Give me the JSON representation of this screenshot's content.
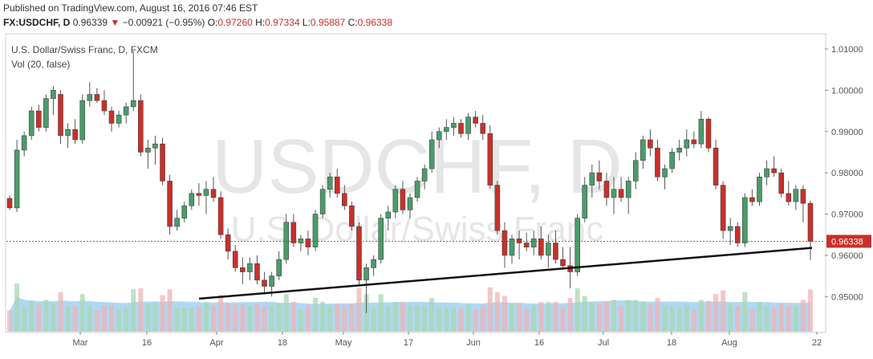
{
  "header": {
    "published": "Published on TradingView.com, August 16, 2016 07:46 EST",
    "symbol": "FX:USDCHF, D",
    "last": "0.96339",
    "change": "−0.00921 (−0.95%)",
    "open_label": "O:",
    "open": "0.97260",
    "high_label": "H:",
    "high": "0.97334",
    "low_label": "L:",
    "low": "0.95887",
    "close_label": "C:",
    "close": "0.96338"
  },
  "legend": {
    "title": "U.S. Dollar/Swiss Franc, D, FXCM",
    "volume": "Vol (20, false)"
  },
  "watermark": {
    "main": "USDCHF, D",
    "sub": "U.S. Dollar/Swiss Franc"
  },
  "colors": {
    "up": "#4a9c6a",
    "down": "#c8302b",
    "vol_up": "#a8d8b0",
    "vol_down": "#f0b4b4",
    "vol_ma": "#8ec8f0",
    "trend": "#111111",
    "last_line": "#c8302b"
  },
  "chart_data": {
    "type": "candlestick",
    "y_axis": {
      "ticks": [
        "0.95000",
        "0.96000",
        "0.97000",
        "0.98000",
        "0.99000",
        "1.00000",
        "1.01000"
      ],
      "range": [
        0.9415,
        1.0135
      ],
      "side": "right"
    },
    "x_axis": {
      "ticks": [
        "Mar",
        "16",
        "Apr",
        "18",
        "May",
        "17",
        "Jun",
        "16",
        "Jul",
        "18",
        "Aug",
        "22"
      ]
    },
    "last_price_label": "0.96338",
    "grid": false,
    "trendline": {
      "from": [
        "Mar 24",
        0.9495
      ],
      "to": [
        "Aug 16",
        0.9618
      ]
    },
    "candles": [
      [
        0.9738,
        0.9745,
        0.971,
        0.9715
      ],
      [
        0.9715,
        0.988,
        0.9705,
        0.9855
      ],
      [
        0.9855,
        0.99,
        0.984,
        0.989
      ],
      [
        0.989,
        0.996,
        0.988,
        0.995
      ],
      [
        0.995,
        0.9965,
        0.99,
        0.991
      ],
      [
        0.991,
        0.999,
        0.99,
        0.998
      ],
      [
        0.998,
        1.001,
        0.994,
        1.0
      ],
      [
        0.999,
        1.0,
        0.987,
        0.989
      ],
      [
        0.989,
        0.992,
        0.986,
        0.9905
      ],
      [
        0.9905,
        0.993,
        0.987,
        0.988
      ],
      [
        0.988,
        0.999,
        0.987,
        0.9975
      ],
      [
        0.9975,
        1.002,
        0.996,
        0.999
      ],
      [
        0.999,
        1.0005,
        0.997,
        0.9975
      ],
      [
        0.9975,
        1.0,
        0.994,
        0.995
      ],
      [
        0.995,
        0.996,
        0.99,
        0.992
      ],
      [
        0.992,
        0.995,
        0.991,
        0.994
      ],
      [
        0.994,
        0.997,
        0.992,
        0.996
      ],
      [
        0.996,
        1.0095,
        0.995,
        0.9975
      ],
      [
        0.9975,
        0.999,
        0.984,
        0.985
      ],
      [
        0.985,
        0.988,
        0.981,
        0.986
      ],
      [
        0.986,
        0.989,
        0.982,
        0.987
      ],
      [
        0.987,
        0.9885,
        0.977,
        0.978
      ],
      [
        0.978,
        0.9795,
        0.965,
        0.967
      ],
      [
        0.967,
        0.971,
        0.966,
        0.969
      ],
      [
        0.969,
        0.973,
        0.968,
        0.972
      ],
      [
        0.972,
        0.976,
        0.971,
        0.975
      ],
      [
        0.975,
        0.9775,
        0.972,
        0.9745
      ],
      [
        0.9745,
        0.978,
        0.97,
        0.976
      ],
      [
        0.976,
        0.979,
        0.973,
        0.974
      ],
      [
        0.974,
        0.9755,
        0.964,
        0.965
      ],
      [
        0.965,
        0.9665,
        0.959,
        0.961
      ],
      [
        0.961,
        0.9625,
        0.956,
        0.957
      ],
      [
        0.957,
        0.9595,
        0.953,
        0.956
      ],
      [
        0.956,
        0.9595,
        0.954,
        0.958
      ],
      [
        0.958,
        0.96,
        0.953,
        0.954
      ],
      [
        0.954,
        0.956,
        0.9505,
        0.9525
      ],
      [
        0.9525,
        0.956,
        0.95,
        0.955
      ],
      [
        0.955,
        0.961,
        0.954,
        0.959
      ],
      [
        0.959,
        0.97,
        0.958,
        0.968
      ],
      [
        0.968,
        0.97,
        0.962,
        0.963
      ],
      [
        0.963,
        0.965,
        0.961,
        0.964
      ],
      [
        0.964,
        0.966,
        0.96,
        0.962
      ],
      [
        0.962,
        0.971,
        0.961,
        0.97
      ],
      [
        0.97,
        0.977,
        0.969,
        0.976
      ],
      [
        0.976,
        0.98,
        0.974,
        0.979
      ],
      [
        0.979,
        0.981,
        0.974,
        0.975
      ],
      [
        0.975,
        0.977,
        0.971,
        0.972
      ],
      [
        0.972,
        0.973,
        0.966,
        0.967
      ],
      [
        0.967,
        0.968,
        0.953,
        0.954
      ],
      [
        0.954,
        0.958,
        0.946,
        0.957
      ],
      [
        0.957,
        0.96,
        0.955,
        0.959
      ],
      [
        0.959,
        0.97,
        0.958,
        0.969
      ],
      [
        0.969,
        0.972,
        0.966,
        0.9705
      ],
      [
        0.9705,
        0.977,
        0.969,
        0.976
      ],
      [
        0.976,
        0.978,
        0.97,
        0.971
      ],
      [
        0.971,
        0.975,
        0.969,
        0.974
      ],
      [
        0.974,
        0.979,
        0.973,
        0.978
      ],
      [
        0.978,
        0.982,
        0.976,
        0.981
      ],
      [
        0.981,
        0.99,
        0.98,
        0.988
      ],
      [
        0.988,
        0.991,
        0.986,
        0.99
      ],
      [
        0.99,
        0.993,
        0.988,
        0.991
      ],
      [
        0.991,
        0.9935,
        0.989,
        0.992
      ],
      [
        0.992,
        0.993,
        0.9885,
        0.9895
      ],
      [
        0.9895,
        0.9945,
        0.988,
        0.9935
      ],
      [
        0.9935,
        0.995,
        0.991,
        0.992
      ],
      [
        0.992,
        0.994,
        0.988,
        0.9895
      ],
      [
        0.9895,
        0.9915,
        0.976,
        0.977
      ],
      [
        0.977,
        0.978,
        0.965,
        0.966
      ],
      [
        0.966,
        0.968,
        0.957,
        0.96
      ],
      [
        0.96,
        0.965,
        0.958,
        0.964
      ],
      [
        0.964,
        0.966,
        0.959,
        0.963
      ],
      [
        0.963,
        0.9655,
        0.961,
        0.962
      ],
      [
        0.962,
        0.966,
        0.96,
        0.964
      ],
      [
        0.964,
        0.967,
        0.959,
        0.96
      ],
      [
        0.96,
        0.965,
        0.957,
        0.963
      ],
      [
        0.963,
        0.966,
        0.958,
        0.959
      ],
      [
        0.959,
        0.962,
        0.9565,
        0.9575
      ],
      [
        0.9575,
        0.962,
        0.952,
        0.956
      ],
      [
        0.956,
        0.97,
        0.955,
        0.969
      ],
      [
        0.969,
        0.979,
        0.968,
        0.977
      ],
      [
        0.977,
        0.982,
        0.974,
        0.98
      ],
      [
        0.98,
        0.983,
        0.976,
        0.978
      ],
      [
        0.978,
        0.98,
        0.972,
        0.974
      ],
      [
        0.974,
        0.979,
        0.97,
        0.976
      ],
      [
        0.976,
        0.979,
        0.973,
        0.974
      ],
      [
        0.974,
        0.979,
        0.97,
        0.978
      ],
      [
        0.978,
        0.985,
        0.976,
        0.983
      ],
      [
        0.983,
        0.989,
        0.981,
        0.988
      ],
      [
        0.988,
        0.9905,
        0.984,
        0.986
      ],
      [
        0.986,
        0.988,
        0.978,
        0.979
      ],
      [
        0.979,
        0.982,
        0.976,
        0.981
      ],
      [
        0.981,
        0.986,
        0.98,
        0.985
      ],
      [
        0.985,
        0.988,
        0.983,
        0.986
      ],
      [
        0.986,
        0.9905,
        0.984,
        0.988
      ],
      [
        0.988,
        0.99,
        0.986,
        0.987
      ],
      [
        0.987,
        0.995,
        0.986,
        0.993
      ],
      [
        0.993,
        0.9935,
        0.985,
        0.986
      ],
      [
        0.986,
        0.988,
        0.976,
        0.977
      ],
      [
        0.977,
        0.978,
        0.964,
        0.966
      ],
      [
        0.966,
        0.969,
        0.9625,
        0.967
      ],
      [
        0.967,
        0.968,
        0.962,
        0.963
      ],
      [
        0.963,
        0.975,
        0.962,
        0.974
      ],
      [
        0.974,
        0.976,
        0.972,
        0.973
      ],
      [
        0.973,
        0.98,
        0.972,
        0.979
      ],
      [
        0.979,
        0.983,
        0.977,
        0.981
      ],
      [
        0.981,
        0.984,
        0.979,
        0.98
      ],
      [
        0.98,
        0.981,
        0.974,
        0.975
      ],
      [
        0.975,
        0.978,
        0.972,
        0.973
      ],
      [
        0.973,
        0.977,
        0.971,
        0.976
      ],
      [
        0.976,
        0.977,
        0.968,
        0.9726
      ],
      [
        0.9726,
        0.9733,
        0.9589,
        0.9634
      ]
    ]
  }
}
